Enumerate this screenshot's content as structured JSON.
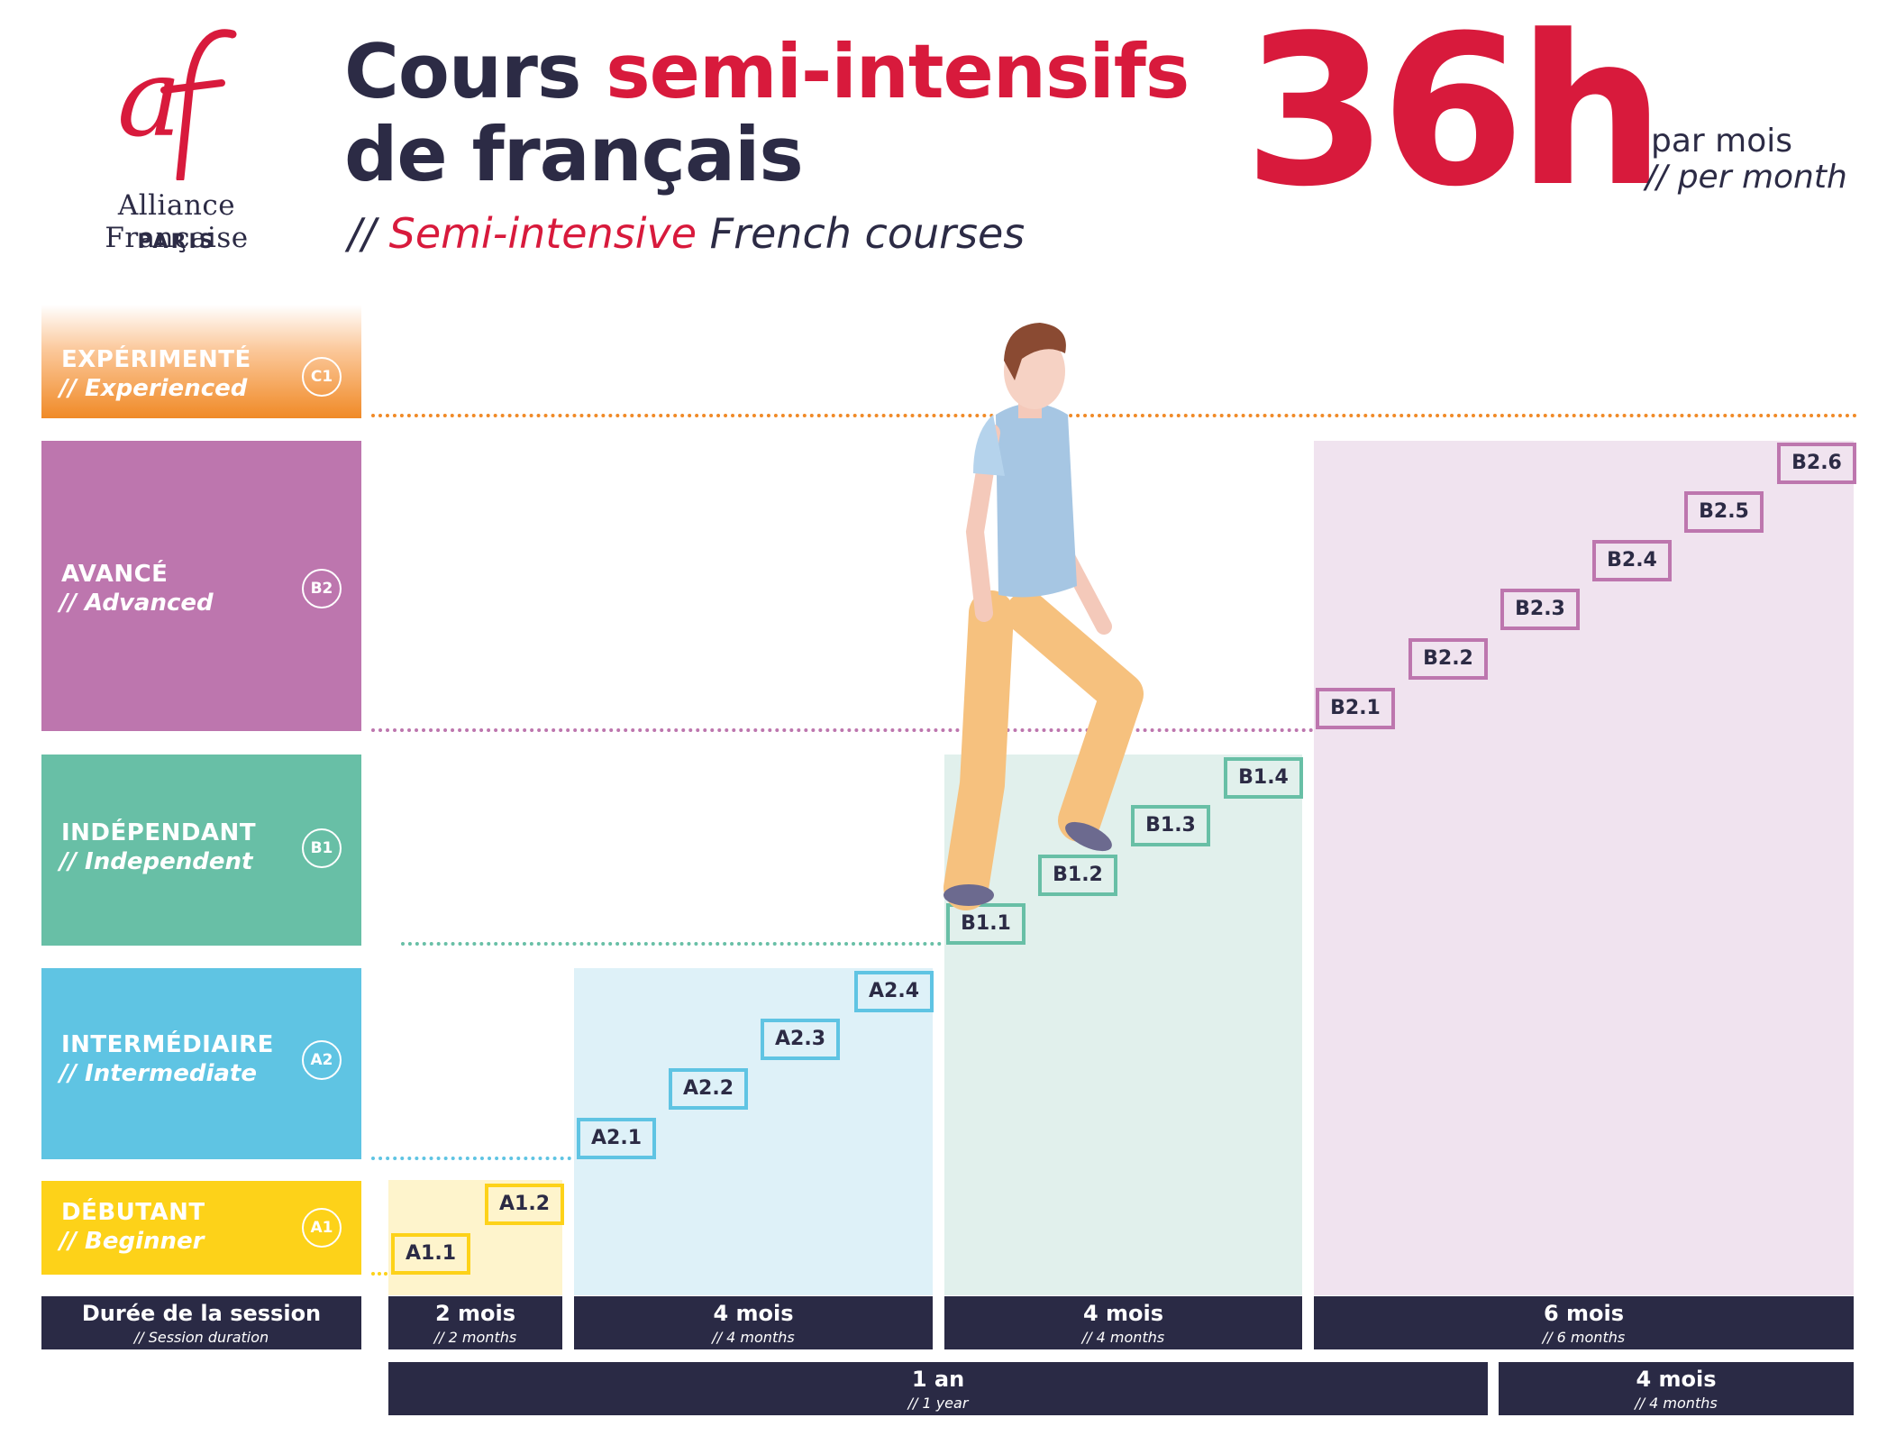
{
  "header": {
    "logo_mark": "af",
    "logo_name": "Alliance  Française",
    "logo_city": "PARIS",
    "title_part1": "Cours ",
    "title_highlight": "semi-intensifs",
    "title_part2": "de français",
    "subtitle_prefix": "// ",
    "subtitle_highlight": "Semi-intensive",
    "subtitle_rest": " French courses",
    "hours": "36h",
    "per_fr": "par mois",
    "per_en": "// per month"
  },
  "levels": [
    {
      "name": "EXPÉRIMENTÉ",
      "sub": "// Experienced",
      "badge": "C1",
      "color_top": "#fde7d2",
      "color": "#f08a27"
    },
    {
      "name": "AVANCÉ",
      "sub": "// Advanced",
      "badge": "B2",
      "color": "#bd76ae"
    },
    {
      "name": "INDÉPENDANT",
      "sub": "// Independent",
      "badge": "B1",
      "color": "#68bfa6"
    },
    {
      "name": "INTERMÉDIAIRE",
      "sub": "// Intermediate",
      "badge": "A2",
      "color": "#5fc4e3"
    },
    {
      "name": "DÉBUTANT",
      "sub": "// Beginner",
      "badge": "A1",
      "color": "#fdd219"
    }
  ],
  "steps": {
    "a1": [
      "A1.1",
      "A1.2"
    ],
    "a2": [
      "A2.1",
      "A2.2",
      "A2.3",
      "A2.4"
    ],
    "b1": [
      "B1.1",
      "B1.2",
      "B1.3",
      "B1.4"
    ],
    "b2": [
      "B2.1",
      "B2.2",
      "B2.3",
      "B2.4",
      "B2.5",
      "B2.6"
    ]
  },
  "colors": {
    "a1_zone": "#fef4cc",
    "a1_border": "#fdd219",
    "a2_zone": "#def1f8",
    "a2_border": "#5fc4e3",
    "b1_zone": "#e1f0ec",
    "b1_border": "#68bfa6",
    "b2_zone": "#f0e3ef",
    "b2_border": "#bd76ae",
    "accent": "#d81a3c",
    "dark": "#2a2a45"
  },
  "durations": {
    "label": {
      "main": "Durée de la session",
      "sub": "// Session duration"
    },
    "items": [
      {
        "main": "2 mois",
        "sub": "// 2 months"
      },
      {
        "main": "4 mois",
        "sub": "// 4 months"
      },
      {
        "main": "4 mois",
        "sub": "// 4 months"
      },
      {
        "main": "6 mois",
        "sub": "// 6 months"
      }
    ]
  },
  "totals": [
    {
      "main": "1 an",
      "sub": "// 1 year"
    },
    {
      "main": "4 mois",
      "sub": "// 4 months"
    }
  ]
}
